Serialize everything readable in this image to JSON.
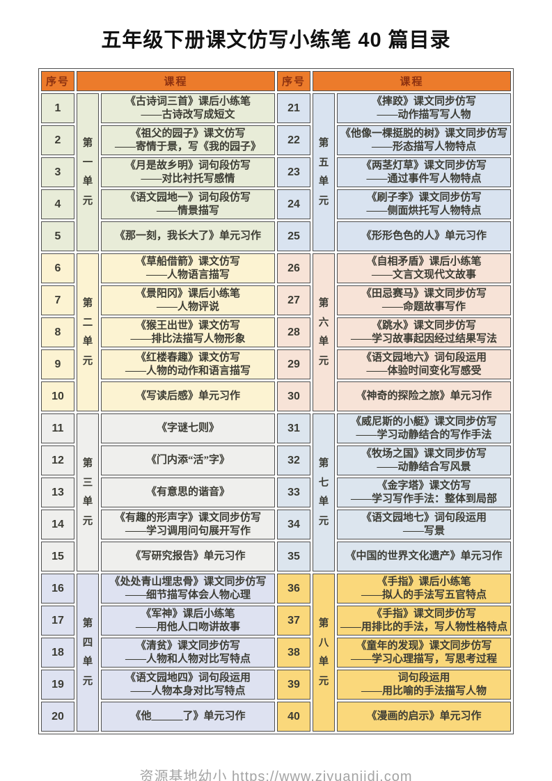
{
  "title": "五年级下册课文仿写小练笔 40 篇目录",
  "footer": "资源基地幼小 https://www.ziyuanjidi.com",
  "colors": {
    "header_bg": "#ec7b2b",
    "header_text": "#8c3110",
    "border": "#4e4e4e",
    "text": "#3c3c34"
  },
  "table": {
    "headers": {
      "num": "序号",
      "course": "课程"
    },
    "units": [
      {
        "name": "第一单元",
        "color": "#e8ecd8",
        "rows": [
          {
            "num": "1",
            "line1": "《古诗词三首》课后小练笔",
            "line2": "——古诗改写成短文"
          },
          {
            "num": "2",
            "line1": "《祖父的园子》课文仿写",
            "line2": "——寄情于景，写《我的园子》"
          },
          {
            "num": "3",
            "line1": "《月是故乡明》词句段仿写",
            "line2": "——对比衬托写感情"
          },
          {
            "num": "4",
            "line1": "《语文园地一》词句段仿写",
            "line2": "——情景描写"
          },
          {
            "num": "5",
            "line1": "《那一刻，我长大了》单元习作",
            "line2": ""
          }
        ]
      },
      {
        "name": "第二单元",
        "color": "#fcf3d2",
        "rows": [
          {
            "num": "6",
            "line1": "《草船借箭》课文仿写",
            "line2": "——人物语言描写"
          },
          {
            "num": "7",
            "line1": "《景阳冈》课后小练笔",
            "line2": "——人物评说"
          },
          {
            "num": "8",
            "line1": "《猴王出世》课文仿写",
            "line2": "——排比法描写人物形象"
          },
          {
            "num": "9",
            "line1": "《红楼春趣》课文仿写",
            "line2": "——人物的动作和语言描写"
          },
          {
            "num": "10",
            "line1": "《写读后感》单元习作",
            "line2": ""
          }
        ]
      },
      {
        "name": "第三单元",
        "color": "#efefed",
        "rows": [
          {
            "num": "11",
            "line1": "《字谜七则》",
            "line2": ""
          },
          {
            "num": "12",
            "line1": "《门内添“活”字》",
            "line2": ""
          },
          {
            "num": "13",
            "line1": "《有意思的谐音》",
            "line2": ""
          },
          {
            "num": "14",
            "line1": "《有趣的形声字》课文同步仿写",
            "line2": "——学习调用问句展开写作"
          },
          {
            "num": "15",
            "line1": "《写研究报告》单元习作",
            "line2": ""
          }
        ]
      },
      {
        "name": "第四单元",
        "color": "#dee2f1",
        "rows": [
          {
            "num": "16",
            "line1": "《处处青山埋忠骨》课文同步仿写",
            "line2": "——细节描写体会人物心理"
          },
          {
            "num": "17",
            "line1": "《军神》课后小练笔",
            "line2": "——用他人口吻讲故事"
          },
          {
            "num": "18",
            "line1": "《清贫》课文同步仿写",
            "line2": "——人物和人物对比写特点"
          },
          {
            "num": "19",
            "line1": "《语文园地四》词句段运用",
            "line2": "——人物本身对比写特点"
          },
          {
            "num": "20",
            "line1": "《他______了》单元习作",
            "line2": ""
          }
        ]
      },
      {
        "name": "第五单元",
        "color": "#d9e3f0",
        "rows": [
          {
            "num": "21",
            "line1": "《摔跤》课文同步仿写",
            "line2": "——动作描写写人物"
          },
          {
            "num": "22",
            "line1": "《他像一棵挺脱的树》课文同步仿写",
            "line2": "——形态描写人物特点"
          },
          {
            "num": "23",
            "line1": "《两茎灯草》课文同步仿写",
            "line2": "——通过事件写人物特点"
          },
          {
            "num": "24",
            "line1": "《刷子李》课文同步仿写",
            "line2": "——侧面烘托写人物特点"
          },
          {
            "num": "25",
            "line1": "《形形色色的人》单元习作",
            "line2": ""
          }
        ]
      },
      {
        "name": "第六单元",
        "color": "#f7e3d7",
        "rows": [
          {
            "num": "26",
            "line1": "《自相矛盾》课后小练笔",
            "line2": "——文言文现代文故事"
          },
          {
            "num": "27",
            "line1": "《田忌赛马》课文同步仿写",
            "line2": "——命题故事写作"
          },
          {
            "num": "28",
            "line1": "《跳水》课文同步仿写",
            "line2": "——学习故事起因经过结果写法"
          },
          {
            "num": "29",
            "line1": "《语文园地六》词句段运用",
            "line2": "——体验时间变化写感受"
          },
          {
            "num": "30",
            "line1": "《神奇的探险之旅》单元习作",
            "line2": ""
          }
        ]
      },
      {
        "name": "第七单元",
        "color": "#dce5ee",
        "rows": [
          {
            "num": "31",
            "line1": "《威尼斯的小艇》课文同步仿写",
            "line2": "——学习动静结合的写作手法"
          },
          {
            "num": "32",
            "line1": "《牧场之国》课文同步仿写",
            "line2": "——动静结合写风景"
          },
          {
            "num": "33",
            "line1": "《金字塔》课文仿写",
            "line2": "——学习写作手法：整体到局部"
          },
          {
            "num": "34",
            "line1": "《语文园地七》词句段运用",
            "line2": "——写景"
          },
          {
            "num": "35",
            "line1": "《中国的世界文化遗产》单元习作",
            "line2": ""
          }
        ]
      },
      {
        "name": "第八单元",
        "color": "#fad87b",
        "rows": [
          {
            "num": "36",
            "line1": "《手指》课后小练笔",
            "line2": "——拟人的手法写五官特点"
          },
          {
            "num": "37",
            "line1": "《手指》课文同步仿写",
            "line2": "——用排比的手法，写人物性格特点"
          },
          {
            "num": "38",
            "line1": "《童年的发现》课文同步仿写",
            "line2": "——学习心理描写，写思考过程"
          },
          {
            "num": "39",
            "line1": "词句段运用",
            "line2": "——用比喻的手法描写人物"
          },
          {
            "num": "40",
            "line1": "《漫画的启示》单元习作",
            "line2": ""
          }
        ]
      }
    ]
  }
}
